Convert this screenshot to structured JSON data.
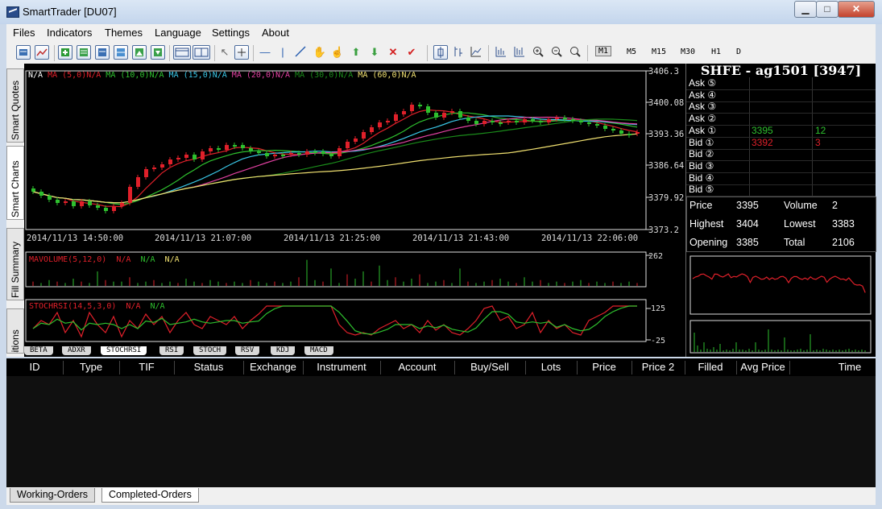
{
  "window": {
    "title": "SmartTrader [DU07]",
    "min": "▁",
    "max": "□",
    "close": "✕"
  },
  "menu": [
    "Files",
    "Indicators",
    "Themes",
    "Language",
    "Settings",
    "About"
  ],
  "toolbar": {
    "periods": [
      "M1",
      "M5",
      "M15",
      "M30",
      "H1",
      "D"
    ],
    "selected_period": "M1",
    "icons": [
      "quotes-icon",
      "chart-icon",
      "add-icon",
      "list-icon",
      "list2-icon",
      "table-icon",
      "image-icon",
      "download-icon",
      "layout1-icon",
      "layout2-icon",
      "cursor-icon",
      "crosshair-icon",
      "hline-icon",
      "vline-icon",
      "trendline-icon",
      "hand-icon",
      "pointer-icon",
      "arrow-up-icon",
      "arrow-down-icon",
      "delete-icon",
      "check-icon",
      "candle-icon",
      "bar-icon",
      "line-icon",
      "bars2-icon",
      "bars3-icon",
      "zoom-in-icon",
      "zoom-out-icon",
      "zoom-fit-icon"
    ]
  },
  "side_tabs": [
    "Smart Quotes",
    "Smart Charts",
    "Fill Summary",
    "Positions"
  ],
  "main_chart": {
    "legend": [
      {
        "text": "N/A",
        "color": "#ffffff"
      },
      {
        "text": "MA (5,0)",
        "color": "#e0202a"
      },
      {
        "text": "N/A",
        "color": "#e0202a"
      },
      {
        "text": "MA (10,0)",
        "color": "#2ec02e"
      },
      {
        "text": "N/A",
        "color": "#2ec02e"
      },
      {
        "text": "MA (15,0)",
        "color": "#39c6e6"
      },
      {
        "text": "N/A",
        "color": "#39c6e6"
      },
      {
        "text": "MA (20,0)",
        "color": "#e040a0"
      },
      {
        "text": "N/A",
        "color": "#e040a0"
      },
      {
        "text": "MA (30,0)",
        "color": "#1a8a1a"
      },
      {
        "text": "N/A",
        "color": "#1a8a1a"
      },
      {
        "text": "MA (60,0)",
        "color": "#f0e070"
      },
      {
        "text": "N/A",
        "color": "#f0e070"
      }
    ],
    "y_ticks": [
      "3406.3",
      "3400.08",
      "3393.36",
      "3386.64",
      "3379.92",
      "3373.2"
    ],
    "x_ticks": [
      "2014/11/13 14:50:00",
      "2014/11/13 21:07:00",
      "2014/11/13 21:25:00",
      "2014/11/13 21:43:00",
      "2014/11/13 22:06:00"
    ]
  },
  "volume_panel": {
    "label": "MAVOLUME(5,12,0)",
    "na1": "N/A",
    "na2": "N/A",
    "na3": "N/A",
    "y_tick": "262"
  },
  "stoch_panel": {
    "label": "STOCHRSI(14,5,3,0)",
    "na1": "N/A",
    "na2": "N/A",
    "y_ticks": [
      "125",
      "-25"
    ]
  },
  "indicator_tabs": [
    "BETA",
    "ADXR",
    "STOCHRSI",
    "RSI",
    "STOCH",
    "RSV",
    "KDJ",
    "MACD"
  ],
  "active_indicator": "STOCHRSI",
  "quote": {
    "title": "SHFE - ag1501 [3947]",
    "depth": [
      {
        "label": "Ask ⑤",
        "price": "",
        "vol": ""
      },
      {
        "label": "Ask ④",
        "price": "",
        "vol": ""
      },
      {
        "label": "Ask ③",
        "price": "",
        "vol": ""
      },
      {
        "label": "Ask ②",
        "price": "",
        "vol": ""
      },
      {
        "label": "Ask ①",
        "price": "3395",
        "vol": "12"
      },
      {
        "label": "Bid ①",
        "price": "3392",
        "vol": "3"
      },
      {
        "label": "Bid ②",
        "price": "",
        "vol": ""
      },
      {
        "label": "Bid ③",
        "price": "",
        "vol": ""
      },
      {
        "label": "Bid ④",
        "price": "",
        "vol": ""
      },
      {
        "label": "Bid ⑤",
        "price": "",
        "vol": ""
      }
    ],
    "stats": {
      "price_label": "Price",
      "price": "3395",
      "volume_label": "Volume",
      "volume": "2",
      "high_label": "Highest",
      "high": "3404",
      "low_label": "Lowest",
      "low": "3383",
      "open_label": "Opening",
      "open": "3385",
      "total_label": "Total",
      "total": "2106"
    }
  },
  "orders": {
    "columns": [
      "ID",
      "Type",
      "TIF",
      "Status",
      "Exchange",
      "Instrument",
      "Account",
      "Buy/Sell",
      "Lots",
      "Price",
      "Price 2",
      "Filled",
      "Avg Price",
      "Time"
    ],
    "tabs": [
      "Working-Orders",
      "Completed-Orders"
    ],
    "active_tab": "Completed-Orders"
  },
  "colors": {
    "up": "#e0202a",
    "down": "#2ec02e",
    "ask": "#2ec02e",
    "bid": "#e0202a"
  }
}
